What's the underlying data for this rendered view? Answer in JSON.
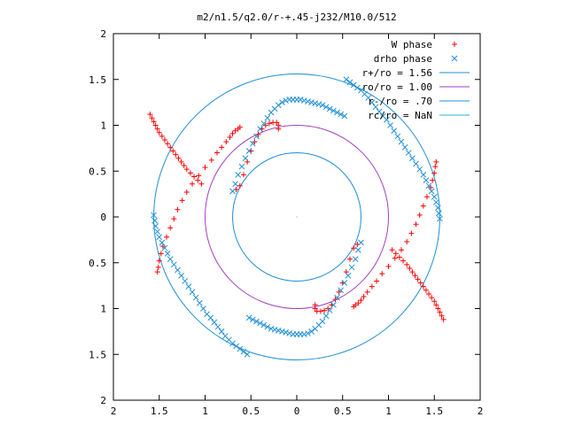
{
  "chart_data": {
    "type": "scatter",
    "title": "m2/n1.5/q2.0/r-+.45-j232/M10.0/512",
    "xlabel": "",
    "ylabel": "",
    "xlim": [
      -2,
      2
    ],
    "ylim": [
      -2,
      2
    ],
    "grid": false,
    "legend_position": "top-right",
    "x_ticks": [
      "2",
      "1.5",
      "1",
      "0.5",
      "0",
      "0.5",
      "1",
      "1.5",
      "2"
    ],
    "x_tick_values": [
      -2,
      -1.5,
      -1,
      -0.5,
      0,
      0.5,
      1,
      1.5,
      2
    ],
    "y_ticks": [
      "2",
      "1.5",
      "1",
      "0.5",
      "0",
      "0.5",
      "1",
      "1.5",
      "2"
    ],
    "y_tick_values": [
      2,
      1.5,
      1,
      0.5,
      0,
      -0.5,
      -1,
      -1.5,
      -2
    ],
    "legend": [
      "W phase",
      "drho phase",
      "r+/ro = 1.56",
      "ro/ro = 1.00",
      "r-/ro = .70",
      "rc/ro = NaN"
    ],
    "circles": [
      {
        "label": "r+/ro = 1.56",
        "radius": 1.56,
        "color": "#1f8fd6"
      },
      {
        "label": "ro/ro = 1.00",
        "radius": 1.0,
        "color": "#a040c0"
      },
      {
        "label": "r-/ro = .70",
        "radius": 0.7,
        "color": "#1f8fd6"
      }
    ],
    "series": [
      {
        "name": "W phase",
        "marker": "plus",
        "color": "#ff0000",
        "x": [
          -0.66,
          -0.62,
          -0.58,
          -0.54,
          -0.5,
          -0.46,
          -0.42,
          -0.38,
          -0.34,
          -0.3,
          -0.26,
          -0.22,
          -0.2,
          -0.2,
          -0.62,
          -0.64,
          -0.67,
          -0.7,
          -0.73,
          -0.77,
          -0.82,
          -0.87,
          -0.93,
          -1.0,
          -1.07,
          -1.14,
          -1.2,
          -1.25,
          -1.3,
          -1.34,
          -1.38,
          -1.42,
          -1.46,
          -1.48,
          -1.5,
          -1.51,
          -1.52,
          -1.6,
          -1.58,
          -1.56,
          -1.54,
          -1.52,
          -1.5,
          -1.47,
          -1.44,
          -1.41,
          -1.38,
          -1.35,
          -1.32,
          -1.29,
          -1.26,
          -1.23,
          -1.2,
          -1.16,
          -1.12,
          -1.08,
          -1.04,
          0.66,
          0.62,
          0.58,
          0.54,
          0.5,
          0.46,
          0.42,
          0.38,
          0.34,
          0.3,
          0.26,
          0.22,
          0.2,
          0.2,
          0.62,
          0.64,
          0.67,
          0.7,
          0.73,
          0.77,
          0.82,
          0.87,
          0.93,
          1.0,
          1.07,
          1.14,
          1.2,
          1.25,
          1.3,
          1.34,
          1.38,
          1.42,
          1.46,
          1.48,
          1.5,
          1.51,
          1.52,
          1.6,
          1.58,
          1.56,
          1.54,
          1.52,
          1.5,
          1.47,
          1.44,
          1.41,
          1.38,
          1.35,
          1.32,
          1.29,
          1.26,
          1.23,
          1.2,
          1.16,
          1.12,
          1.08,
          1.04
        ],
        "y": [
          0.3,
          0.34,
          0.46,
          0.6,
          0.72,
          0.82,
          0.9,
          0.96,
          1.0,
          1.02,
          1.03,
          1.03,
          1.0,
          0.96,
          0.98,
          0.96,
          0.94,
          0.91,
          0.87,
          0.82,
          0.76,
          0.7,
          0.62,
          0.54,
          0.45,
          0.36,
          0.27,
          0.18,
          0.08,
          -0.02,
          -0.12,
          -0.22,
          -0.32,
          -0.4,
          -0.48,
          -0.55,
          -0.6,
          1.12,
          1.08,
          1.04,
          1.0,
          0.96,
          0.92,
          0.88,
          0.84,
          0.8,
          0.76,
          0.72,
          0.68,
          0.64,
          0.6,
          0.56,
          0.52,
          0.48,
          0.44,
          0.4,
          0.36,
          -0.3,
          -0.34,
          -0.46,
          -0.6,
          -0.72,
          -0.82,
          -0.9,
          -0.96,
          -1.0,
          -1.02,
          -1.03,
          -1.03,
          -1.0,
          -0.96,
          -0.98,
          -0.96,
          -0.94,
          -0.91,
          -0.87,
          -0.82,
          -0.76,
          -0.7,
          -0.62,
          -0.54,
          -0.45,
          -0.36,
          -0.27,
          -0.18,
          -0.08,
          0.02,
          0.12,
          0.22,
          0.32,
          0.4,
          0.48,
          0.55,
          0.6,
          -1.12,
          -1.08,
          -1.04,
          -1.0,
          -0.96,
          -0.92,
          -0.88,
          -0.84,
          -0.8,
          -0.76,
          -0.72,
          -0.68,
          -0.64,
          -0.6,
          -0.56,
          -0.52,
          -0.48,
          -0.44,
          -0.4,
          -0.36
        ]
      },
      {
        "name": "drho phase",
        "marker": "cross",
        "color": "#1f8fd6",
        "x": [
          -0.7,
          -0.67,
          -0.64,
          -0.6,
          -0.56,
          -0.52,
          -0.48,
          -0.44,
          -0.4,
          -0.36,
          -0.32,
          -0.28,
          -0.24,
          -0.2,
          -0.16,
          -0.12,
          -0.08,
          -0.04,
          0.0,
          0.04,
          0.08,
          0.12,
          0.16,
          0.2,
          0.24,
          0.28,
          0.32,
          0.36,
          0.4,
          0.44,
          0.48,
          0.52,
          -1.56,
          -1.55,
          -1.54,
          -1.52,
          -1.5,
          -1.47,
          -1.44,
          -1.41,
          -1.38,
          -1.34,
          -1.3,
          -1.26,
          -1.22,
          -1.18,
          -1.14,
          -1.1,
          -1.06,
          -1.02,
          -0.98,
          -0.94,
          -0.9,
          -0.86,
          -0.82,
          -0.78,
          -0.74,
          -0.7,
          -0.66,
          -0.62,
          -0.58,
          -0.54,
          0.7,
          0.67,
          0.64,
          0.6,
          0.56,
          0.52,
          0.48,
          0.44,
          0.4,
          0.36,
          0.32,
          0.28,
          0.24,
          0.2,
          0.16,
          0.12,
          0.08,
          0.04,
          0.0,
          -0.04,
          -0.08,
          -0.12,
          -0.16,
          -0.2,
          -0.24,
          -0.28,
          -0.32,
          -0.36,
          -0.4,
          -0.44,
          -0.48,
          -0.52,
          1.56,
          1.55,
          1.54,
          1.52,
          1.5,
          1.47,
          1.44,
          1.41,
          1.38,
          1.34,
          1.3,
          1.26,
          1.22,
          1.18,
          1.14,
          1.1,
          1.06,
          1.02,
          0.98,
          0.94,
          0.9,
          0.86,
          0.82,
          0.78,
          0.74,
          0.7,
          0.66,
          0.62,
          0.58,
          0.54
        ],
        "y": [
          0.28,
          0.36,
          0.46,
          0.55,
          0.64,
          0.72,
          0.8,
          0.88,
          0.96,
          1.02,
          1.08,
          1.14,
          1.18,
          1.22,
          1.25,
          1.27,
          1.28,
          1.28,
          1.28,
          1.28,
          1.27,
          1.26,
          1.25,
          1.24,
          1.23,
          1.22,
          1.2,
          1.18,
          1.16,
          1.14,
          1.12,
          1.1,
          0.02,
          -0.04,
          -0.1,
          -0.16,
          -0.22,
          -0.28,
          -0.34,
          -0.4,
          -0.46,
          -0.52,
          -0.58,
          -0.64,
          -0.7,
          -0.76,
          -0.82,
          -0.88,
          -0.94,
          -1.0,
          -1.06,
          -1.1,
          -1.15,
          -1.2,
          -1.25,
          -1.3,
          -1.34,
          -1.38,
          -1.41,
          -1.44,
          -1.47,
          -1.5,
          -0.28,
          -0.36,
          -0.46,
          -0.55,
          -0.64,
          -0.72,
          -0.8,
          -0.88,
          -0.96,
          -1.02,
          -1.08,
          -1.14,
          -1.18,
          -1.22,
          -1.25,
          -1.27,
          -1.28,
          -1.28,
          -1.28,
          -1.28,
          -1.27,
          -1.26,
          -1.25,
          -1.24,
          -1.23,
          -1.22,
          -1.2,
          -1.18,
          -1.16,
          -1.14,
          -1.12,
          -1.1,
          -0.02,
          0.04,
          0.1,
          0.16,
          0.22,
          0.28,
          0.34,
          0.4,
          0.46,
          0.52,
          0.58,
          0.64,
          0.7,
          0.76,
          0.82,
          0.88,
          0.94,
          1.0,
          1.06,
          1.1,
          1.15,
          1.2,
          1.25,
          1.3,
          1.34,
          1.38,
          1.41,
          1.44,
          1.47,
          1.5
        ]
      }
    ]
  }
}
